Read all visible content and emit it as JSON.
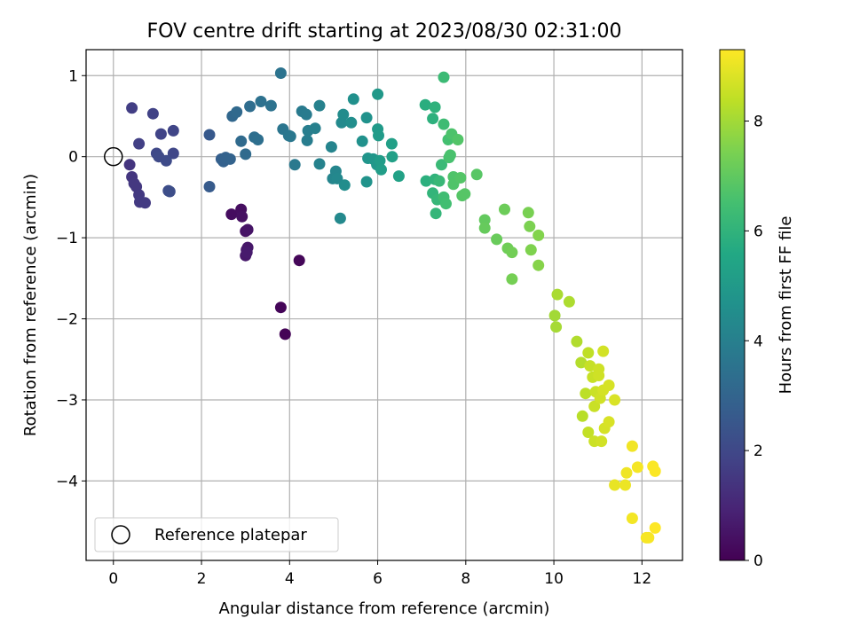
{
  "chart_data": {
    "type": "scatter",
    "title": "FOV centre drift starting at 2023/08/30 02:31:00",
    "xlabel": "Angular distance from reference (arcmin)",
    "ylabel": "Rotation from reference (arcmin)",
    "xlim": [
      -0.62,
      12.92
    ],
    "ylim": [
      -4.98,
      1.32
    ],
    "xticks": [
      0,
      2,
      4,
      6,
      8,
      10,
      12
    ],
    "yticks": [
      -4,
      -3,
      -2,
      -1,
      0,
      1
    ],
    "grid": true,
    "colormap": "viridis",
    "colorbar": {
      "label": "Hours from first FF file",
      "range": [
        0,
        9.3
      ],
      "ticks": [
        0,
        2,
        4,
        6,
        8
      ]
    },
    "legend": {
      "placement": "lower-left",
      "entries": [
        {
          "label": "Reference platepar",
          "marker": "open-circle"
        }
      ]
    },
    "reference_point": {
      "x": 0,
      "y": 0
    },
    "series": [
      {
        "points": [
          {
            "x": 3.9,
            "y": -2.19,
            "h": 0.05
          },
          {
            "x": 3.8,
            "y": -1.86,
            "h": 0.1
          },
          {
            "x": 4.22,
            "y": -1.28,
            "h": 0.15
          },
          {
            "x": 2.68,
            "y": -0.71,
            "h": 0.3
          },
          {
            "x": 2.9,
            "y": -0.65,
            "h": 0.35
          },
          {
            "x": 2.92,
            "y": -0.74,
            "h": 0.4
          },
          {
            "x": 3.0,
            "y": -0.92,
            "h": 0.45
          },
          {
            "x": 3.05,
            "y": -0.9,
            "h": 0.5
          },
          {
            "x": 3.02,
            "y": -1.15,
            "h": 0.55
          },
          {
            "x": 3.05,
            "y": -1.12,
            "h": 0.6
          },
          {
            "x": 3.0,
            "y": -1.22,
            "h": 0.65
          },
          {
            "x": 3.03,
            "y": -1.18,
            "h": 0.7
          },
          {
            "x": 0.42,
            "y": 0.6,
            "h": 1.7
          },
          {
            "x": 0.58,
            "y": 0.16,
            "h": 1.75
          },
          {
            "x": 0.9,
            "y": 0.53,
            "h": 1.8
          },
          {
            "x": 1.08,
            "y": 0.28,
            "h": 1.85
          },
          {
            "x": 1.36,
            "y": 0.32,
            "h": 1.9
          },
          {
            "x": 1.36,
            "y": 0.04,
            "h": 1.95
          },
          {
            "x": 0.98,
            "y": 0.04,
            "h": 2.0
          },
          {
            "x": 1.03,
            "y": 0.0,
            "h": 2.05
          },
          {
            "x": 1.2,
            "y": -0.05,
            "h": 2.1
          },
          {
            "x": 1.25,
            "y": -0.42,
            "h": 2.15
          },
          {
            "x": 1.28,
            "y": -0.43,
            "h": 2.2
          },
          {
            "x": 0.37,
            "y": -0.1,
            "h": 1.4
          },
          {
            "x": 0.42,
            "y": -0.25,
            "h": 1.45
          },
          {
            "x": 0.47,
            "y": -0.33,
            "h": 1.5
          },
          {
            "x": 0.52,
            "y": -0.37,
            "h": 1.52
          },
          {
            "x": 0.58,
            "y": -0.47,
            "h": 1.55
          },
          {
            "x": 0.6,
            "y": -0.56,
            "h": 1.58
          },
          {
            "x": 0.72,
            "y": -0.57,
            "h": 1.6
          },
          {
            "x": 2.18,
            "y": 0.27,
            "h": 2.6
          },
          {
            "x": 2.18,
            "y": -0.37,
            "h": 2.65
          },
          {
            "x": 2.45,
            "y": -0.03,
            "h": 2.8
          },
          {
            "x": 2.5,
            "y": -0.06,
            "h": 2.85
          },
          {
            "x": 2.55,
            "y": -0.01,
            "h": 2.9
          },
          {
            "x": 2.65,
            "y": -0.03,
            "h": 2.95
          },
          {
            "x": 2.7,
            "y": 0.5,
            "h": 3.1
          },
          {
            "x": 2.8,
            "y": 0.55,
            "h": 3.15
          },
          {
            "x": 2.9,
            "y": 0.19,
            "h": 3.2
          },
          {
            "x": 3.0,
            "y": 0.03,
            "h": 3.25
          },
          {
            "x": 3.1,
            "y": 0.62,
            "h": 3.3
          },
          {
            "x": 3.2,
            "y": 0.24,
            "h": 3.35
          },
          {
            "x": 3.28,
            "y": 0.21,
            "h": 3.4
          },
          {
            "x": 3.35,
            "y": 0.68,
            "h": 3.45
          },
          {
            "x": 3.58,
            "y": 0.63,
            "h": 3.5
          },
          {
            "x": 3.8,
            "y": 1.03,
            "h": 3.55
          },
          {
            "x": 3.85,
            "y": 0.34,
            "h": 3.6
          },
          {
            "x": 3.98,
            "y": 0.26,
            "h": 3.65
          },
          {
            "x": 4.02,
            "y": 0.25,
            "h": 3.7
          },
          {
            "x": 4.12,
            "y": -0.1,
            "h": 3.75
          },
          {
            "x": 4.28,
            "y": 0.56,
            "h": 3.8
          },
          {
            "x": 4.38,
            "y": 0.52,
            "h": 3.85
          },
          {
            "x": 4.4,
            "y": 0.2,
            "h": 3.9
          },
          {
            "x": 4.42,
            "y": 0.32,
            "h": 3.95
          },
          {
            "x": 4.58,
            "y": 0.35,
            "h": 4.0
          },
          {
            "x": 4.68,
            "y": 0.63,
            "h": 4.05
          },
          {
            "x": 4.68,
            "y": -0.09,
            "h": 4.1
          },
          {
            "x": 4.95,
            "y": 0.12,
            "h": 4.15
          },
          {
            "x": 4.98,
            "y": -0.27,
            "h": 4.2
          },
          {
            "x": 5.05,
            "y": -0.18,
            "h": 4.25
          },
          {
            "x": 5.08,
            "y": -0.27,
            "h": 4.3
          },
          {
            "x": 5.15,
            "y": -0.76,
            "h": 4.35
          },
          {
            "x": 5.18,
            "y": 0.42,
            "h": 4.4
          },
          {
            "x": 5.22,
            "y": 0.52,
            "h": 4.45
          },
          {
            "x": 5.25,
            "y": -0.35,
            "h": 4.5
          },
          {
            "x": 5.4,
            "y": 0.42,
            "h": 4.55
          },
          {
            "x": 5.45,
            "y": 0.71,
            "h": 4.6
          },
          {
            "x": 5.65,
            "y": 0.19,
            "h": 4.65
          },
          {
            "x": 5.75,
            "y": 0.48,
            "h": 4.7
          },
          {
            "x": 5.75,
            "y": -0.31,
            "h": 4.75
          },
          {
            "x": 5.78,
            "y": -0.02,
            "h": 4.8
          },
          {
            "x": 5.9,
            "y": -0.03,
            "h": 4.85
          },
          {
            "x": 5.98,
            "y": -0.1,
            "h": 4.9
          },
          {
            "x": 6.0,
            "y": 0.77,
            "h": 4.95
          },
          {
            "x": 6.0,
            "y": 0.34,
            "h": 5.0
          },
          {
            "x": 6.02,
            "y": 0.26,
            "h": 5.05
          },
          {
            "x": 6.05,
            "y": -0.05,
            "h": 5.1
          },
          {
            "x": 6.08,
            "y": -0.16,
            "h": 5.15
          },
          {
            "x": 6.32,
            "y": 0.16,
            "h": 5.2
          },
          {
            "x": 6.33,
            "y": 0.0,
            "h": 5.25
          },
          {
            "x": 6.48,
            "y": -0.24,
            "h": 5.3
          },
          {
            "x": 7.08,
            "y": 0.64,
            "h": 5.8
          },
          {
            "x": 7.1,
            "y": -0.3,
            "h": 5.85
          },
          {
            "x": 7.25,
            "y": 0.47,
            "h": 5.9
          },
          {
            "x": 7.3,
            "y": 0.61,
            "h": 5.95
          },
          {
            "x": 7.3,
            "y": -0.28,
            "h": 6.0
          },
          {
            "x": 7.25,
            "y": -0.45,
            "h": 6.05
          },
          {
            "x": 7.32,
            "y": -0.7,
            "h": 6.1
          },
          {
            "x": 7.35,
            "y": -0.53,
            "h": 6.15
          },
          {
            "x": 7.4,
            "y": -0.3,
            "h": 6.2
          },
          {
            "x": 7.45,
            "y": -0.1,
            "h": 6.25
          },
          {
            "x": 7.5,
            "y": 0.98,
            "h": 6.3
          },
          {
            "x": 7.5,
            "y": 0.4,
            "h": 6.35
          },
          {
            "x": 7.5,
            "y": -0.5,
            "h": 6.4
          },
          {
            "x": 7.55,
            "y": -0.58,
            "h": 6.45
          },
          {
            "x": 7.6,
            "y": 0.21,
            "h": 6.5
          },
          {
            "x": 7.62,
            "y": -0.01,
            "h": 6.55
          },
          {
            "x": 7.65,
            "y": 0.02,
            "h": 6.6
          },
          {
            "x": 7.68,
            "y": 0.28,
            "h": 6.65
          },
          {
            "x": 7.72,
            "y": -0.25,
            "h": 6.7
          },
          {
            "x": 7.72,
            "y": -0.34,
            "h": 6.72
          },
          {
            "x": 7.82,
            "y": 0.21,
            "h": 6.75
          },
          {
            "x": 7.88,
            "y": -0.26,
            "h": 6.78
          },
          {
            "x": 7.92,
            "y": -0.48,
            "h": 6.8
          },
          {
            "x": 7.98,
            "y": -0.46,
            "h": 6.82
          },
          {
            "x": 8.25,
            "y": -0.22,
            "h": 6.85
          },
          {
            "x": 8.43,
            "y": -0.78,
            "h": 7.05
          },
          {
            "x": 8.43,
            "y": -0.88,
            "h": 7.1
          },
          {
            "x": 8.7,
            "y": -1.02,
            "h": 7.15
          },
          {
            "x": 8.88,
            "y": -0.65,
            "h": 7.2
          },
          {
            "x": 8.95,
            "y": -1.13,
            "h": 7.25
          },
          {
            "x": 9.05,
            "y": -1.18,
            "h": 7.3
          },
          {
            "x": 9.05,
            "y": -1.51,
            "h": 7.35
          },
          {
            "x": 9.42,
            "y": -0.69,
            "h": 7.4
          },
          {
            "x": 9.45,
            "y": -0.86,
            "h": 7.45
          },
          {
            "x": 9.48,
            "y": -1.15,
            "h": 7.5
          },
          {
            "x": 9.65,
            "y": -0.97,
            "h": 7.55
          },
          {
            "x": 9.65,
            "y": -1.34,
            "h": 7.6
          },
          {
            "x": 10.02,
            "y": -1.96,
            "h": 8.0
          },
          {
            "x": 10.05,
            "y": -2.1,
            "h": 8.05
          },
          {
            "x": 10.08,
            "y": -1.7,
            "h": 8.1
          },
          {
            "x": 10.35,
            "y": -1.79,
            "h": 8.15
          },
          {
            "x": 10.52,
            "y": -2.28,
            "h": 8.2
          },
          {
            "x": 10.62,
            "y": -2.54,
            "h": 8.25
          },
          {
            "x": 10.65,
            "y": -3.2,
            "h": 8.3
          },
          {
            "x": 10.72,
            "y": -2.92,
            "h": 8.35
          },
          {
            "x": 10.78,
            "y": -2.42,
            "h": 8.4
          },
          {
            "x": 10.78,
            "y": -3.4,
            "h": 8.45
          },
          {
            "x": 10.82,
            "y": -2.58,
            "h": 8.5
          },
          {
            "x": 10.88,
            "y": -2.72,
            "h": 8.52
          },
          {
            "x": 10.92,
            "y": -3.08,
            "h": 8.54
          },
          {
            "x": 10.95,
            "y": -2.9,
            "h": 8.56
          },
          {
            "x": 10.92,
            "y": -3.51,
            "h": 8.58
          },
          {
            "x": 11.02,
            "y": -2.62,
            "h": 8.6
          },
          {
            "x": 11.02,
            "y": -2.7,
            "h": 8.62
          },
          {
            "x": 11.05,
            "y": -2.98,
            "h": 8.64
          },
          {
            "x": 11.08,
            "y": -3.51,
            "h": 8.66
          },
          {
            "x": 11.12,
            "y": -2.4,
            "h": 8.68
          },
          {
            "x": 11.12,
            "y": -2.88,
            "h": 8.7
          },
          {
            "x": 11.15,
            "y": -3.35,
            "h": 8.72
          },
          {
            "x": 11.25,
            "y": -2.82,
            "h": 8.74
          },
          {
            "x": 11.25,
            "y": -3.27,
            "h": 8.76
          },
          {
            "x": 11.38,
            "y": -3.0,
            "h": 8.78
          },
          {
            "x": 11.38,
            "y": -4.05,
            "h": 9.0
          },
          {
            "x": 11.62,
            "y": -4.05,
            "h": 9.05
          },
          {
            "x": 11.65,
            "y": -3.9,
            "h": 9.1
          },
          {
            "x": 11.78,
            "y": -3.57,
            "h": 9.12
          },
          {
            "x": 11.78,
            "y": -4.46,
            "h": 9.15
          },
          {
            "x": 11.9,
            "y": -3.83,
            "h": 9.18
          },
          {
            "x": 12.1,
            "y": -4.7,
            "h": 9.2
          },
          {
            "x": 12.15,
            "y": -4.7,
            "h": 9.22
          },
          {
            "x": 12.25,
            "y": -3.82,
            "h": 9.25
          },
          {
            "x": 12.3,
            "y": -3.88,
            "h": 9.27
          },
          {
            "x": 12.3,
            "y": -4.58,
            "h": 9.3
          }
        ]
      }
    ]
  }
}
